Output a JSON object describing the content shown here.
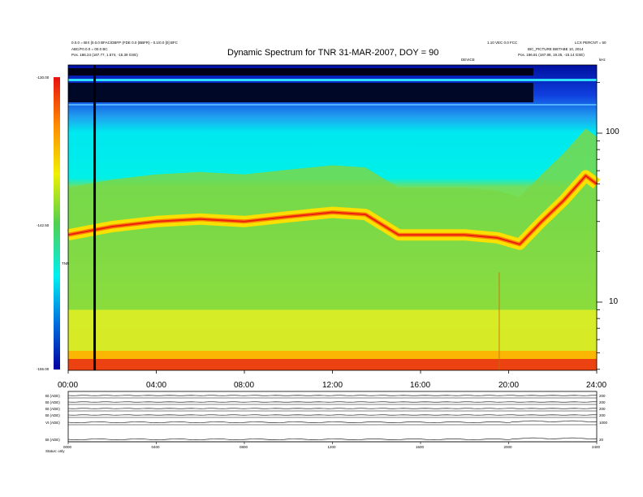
{
  "header": {
    "title": "Dynamic Spectrum for TNR 31-MAR-2007, DOY = 90",
    "left_line1": "0.0.0 = BIX [0.0.0 BFAC/DBFP (FDE 0.0 (BBFR) - 0.1/0.0 [0] BFC",
    "left_line2": "ABC/F0.0.0 = 00.0 BC",
    "right_line1": "1.10 VEC 0.0 FCC",
    "right_line2": "LCX PERCNT = 50",
    "right_line3": "BIC_PICTURE BIETABE 10, 2014",
    "start_pos": "Pos.   186.24 (187.77, 1.574, -15.39 GSE)",
    "end_pos": "Pos.   186.81 (187.88, 19.25, -15.14 GSE)",
    "device": "DEVICE",
    "unit": "kHz"
  },
  "colorbar": {
    "label": "TNR",
    "ticks": [
      "-130.00",
      "-142.50",
      "-155.00"
    ]
  },
  "right_axis": {
    "ticks": [
      "100",
      "10"
    ]
  },
  "x_axis": {
    "ticks": [
      "00:00",
      "04:00",
      "08:00",
      "12:00",
      "16:00",
      "20:00",
      "24:00"
    ]
  },
  "panels": {
    "labels": [
      "Bt (ADE)",
      "Bt (ADE)",
      "Bt (ADE)",
      "Bt (ADE)",
      "Vt (ADE)",
      "Bt (ADE)"
    ],
    "ticks": [
      "200",
      "200",
      "200",
      "200",
      "1000",
      "20"
    ],
    "x_ticks": [
      "0000",
      "0400",
      "0800",
      "1200",
      "1600",
      "2000",
      "2400"
    ],
    "footer": "Status:   only"
  },
  "colors": {
    "colorbar_top": "#e81010",
    "colorbar_mid": "#00f0f0",
    "colorbar_bottom": "#0000a0",
    "spectrum_background": "#8bd83e",
    "gap_line": "#000000"
  },
  "chart_data": {
    "type": "heatmap",
    "title": "Dynamic Spectrum for TNR 31-MAR-2007, DOY = 90",
    "xlabel": "",
    "ylabel": "kHz",
    "x_range": [
      "00:00",
      "24:00"
    ],
    "y_scale": "log",
    "y_ticks": [
      10,
      100
    ],
    "colorbar_range": [
      -155.0,
      -130.0
    ],
    "colorbar_label": "TNR",
    "peak_ridge": {
      "hours": [
        0,
        2,
        4,
        6,
        8,
        10,
        12,
        13.5,
        15,
        18,
        19.5,
        20.5,
        21.5,
        22.5,
        23.5,
        24
      ],
      "frequency_khz": [
        25,
        28,
        30,
        31,
        30,
        32,
        34,
        33,
        25,
        25,
        24,
        22,
        30,
        40,
        56,
        50
      ]
    },
    "data_gap_hour": 1.2
  }
}
